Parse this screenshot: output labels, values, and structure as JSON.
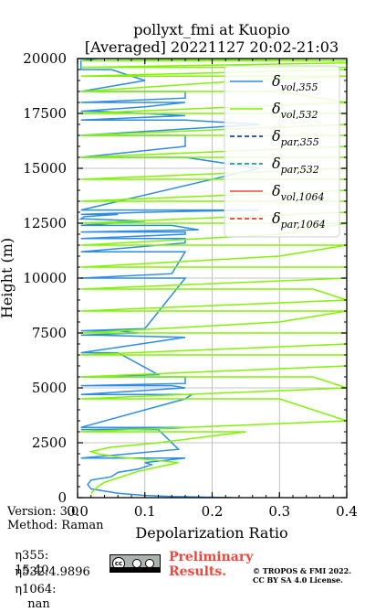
{
  "chart_data": {
    "type": "line",
    "title": "pollyxt_fmi at Kuopio",
    "subtitle": "[Averaged] 20221127 20:02-21:03",
    "xlabel": "Depolarization Ratio",
    "ylabel": "Height (m)",
    "xlim": [
      0,
      0.4
    ],
    "ylim": [
      0,
      20000
    ],
    "xticks": [
      "0.0",
      "0.1",
      "0.2",
      "0.3",
      "0.4"
    ],
    "yticks": [
      "0",
      "2500",
      "5000",
      "7500",
      "10000",
      "12500",
      "15000",
      "17500",
      "20000"
    ],
    "grid": true,
    "legend_position": "upper-right",
    "legend": [
      {
        "sym": "δ",
        "sub": "vol,355",
        "color": "#2d8ce6",
        "dash": "solid"
      },
      {
        "sym": "δ",
        "sub": "vol,532",
        "color": "#80f400",
        "dash": "solid"
      },
      {
        "sym": "δ",
        "sub": "par,355",
        "color": "#0a1e8c",
        "dash": "dashed"
      },
      {
        "sym": "δ",
        "sub": "par,532",
        "color": "#0b8a5e",
        "dash": "dashed"
      },
      {
        "sym": "δ",
        "sub": "vol,1064",
        "color": "#f0473d",
        "dash": "solid"
      },
      {
        "sym": "δ",
        "sub": "par,1064",
        "color": "#e8161d",
        "dash": "dashed"
      }
    ],
    "series": [
      {
        "name": "vol,355",
        "color": "#2d8ce6",
        "x": [
          0.23,
          0.14,
          0.1,
          0.06,
          0.02,
          0.015,
          0.02,
          0.05,
          0.06,
          0.09,
          0.11,
          0.1,
          0.13,
          0.16,
          0.15,
          0.12,
          0.14,
          0.16,
          0.16,
          0.17,
          0.16,
          0.14,
          0.16,
          0.16,
          0.12,
          0.06,
          0.16,
          0.03,
          0.09,
          0.06,
          0.1,
          0.16,
          0.14,
          0.16,
          0.16,
          0.16,
          0.16,
          0.16,
          0.18,
          0.14,
          0.1,
          0.01,
          0.01,
          0.06,
          0.1,
          0.27,
          0.27,
          0.16,
          0.16,
          0.16,
          0.27,
          0.16,
          0.16,
          0.03,
          0.1,
          0.16,
          0.16,
          0.16,
          0.1,
          0.05,
          0.005,
          0.005,
          0.03,
          0.1,
          0.12,
          0.1,
          0.12,
          0.16,
          0.16,
          0.12,
          0.1,
          0.16,
          0.16,
          0.16,
          0.16,
          0.16,
          0.16,
          0.16,
          0.16,
          0.16,
          0.16,
          0.16,
          0.16,
          0.16,
          0.16,
          0.16,
          0.16,
          0.16,
          0.16,
          0.16
        ],
        "y": [
          0,
          50,
          100,
          200,
          400,
          600,
          800,
          950,
          1150,
          1300,
          1500,
          1600,
          1700,
          1800,
          2200,
          3100,
          3150,
          3200,
          4500,
          4700,
          5000,
          5100,
          5200,
          5500,
          5600,
          6600,
          7300,
          7400,
          7500,
          7600,
          7700,
          10000,
          10200,
          11200,
          11600,
          11800,
          12000,
          12100,
          12200,
          12400,
          12600,
          12700,
          12800,
          12900,
          13000,
          13100,
          15000,
          15500,
          16000,
          16500,
          17000,
          17200,
          17400,
          17600,
          17800,
          18000,
          18200,
          18500,
          19000,
          19500,
          19800,
          19900,
          20000,
          20000,
          20000,
          20000,
          20000,
          20000,
          20000,
          20000,
          20000,
          20000,
          20000,
          20000,
          20000,
          20000,
          20000,
          20000,
          20000,
          20000,
          20000,
          20000,
          20000,
          20000,
          20000,
          20000,
          20000,
          20000,
          20000,
          20000
        ]
      },
      {
        "name": "vol,532",
        "color": "#80f400",
        "x": [
          0.02,
          0.03,
          0.04,
          0.06,
          0.09,
          0.12,
          0.15,
          0.1,
          0.06,
          0.03,
          0.02,
          0.05,
          0.12,
          0.25,
          0.4,
          0.3,
          0.4,
          0.35,
          0.4,
          0.4,
          0.4,
          0.4,
          0.3,
          0.4,
          0.4,
          0.35,
          0.4,
          0.4,
          0.3,
          0.4,
          0.3,
          0.4,
          0.4,
          0.4,
          0.4,
          0.4,
          0.4,
          0.4,
          0.4,
          0.4,
          0.4,
          0.4,
          0.4,
          0.3,
          0.25,
          0.4,
          0.4,
          0.4,
          0.4,
          0.4,
          0.4
        ],
        "y": [
          200,
          500,
          700,
          900,
          1200,
          1400,
          1600,
          1750,
          1850,
          2000,
          2100,
          2300,
          2500,
          3000,
          3500,
          4500,
          5000,
          5500,
          6000,
          6500,
          7000,
          7500,
          8000,
          8500,
          9000,
          9500,
          10000,
          10500,
          11000,
          11500,
          12000,
          12500,
          13000,
          13500,
          14000,
          14500,
          15000,
          15500,
          16000,
          16500,
          17000,
          17500,
          18000,
          18500,
          19000,
          19200,
          19500,
          19600,
          19800,
          19900,
          20000
        ]
      }
    ]
  },
  "meta": {
    "version": "Version: 3.0",
    "method": "Method: Raman",
    "eta355_label": "η355:",
    "eta355_value": "15.40",
    "eta532_label": "η532:",
    "eta532_value": "4.9896",
    "eta1064_label": "η1064:",
    "eta1064_value": "nan"
  },
  "footer": {
    "preliminary": "Preliminary",
    "results": "Results.",
    "copyright_1": "© TROPOS & FMI 2022.",
    "copyright_2": "CC BY SA 4.0 License.",
    "cc_label": "cc"
  }
}
